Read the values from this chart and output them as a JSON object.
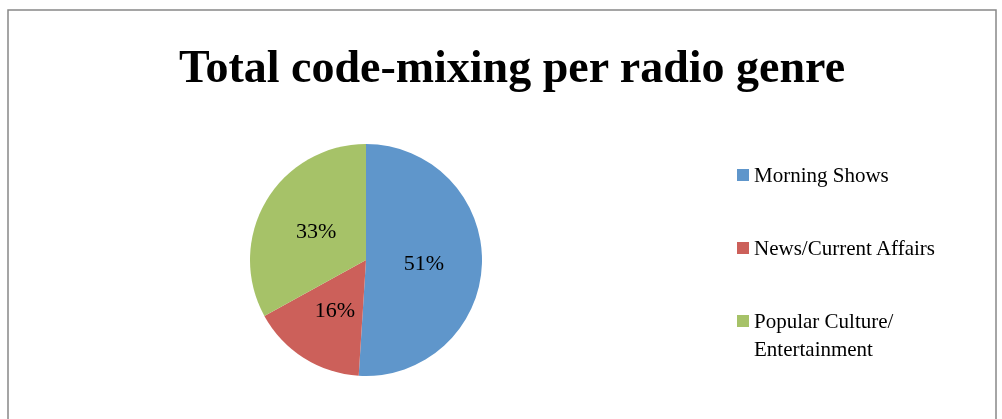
{
  "chart_data": {
    "type": "pie",
    "title": "Total code-mixing per radio genre",
    "categories": [
      "Morning Shows",
      "News/Current Affairs",
      "Popular Culture/Entertainment"
    ],
    "values": [
      51,
      16,
      33
    ],
    "value_labels": [
      "51%",
      "16%",
      "33%"
    ],
    "colors": [
      "#5f96cb",
      "#cc605a",
      "#a6c268"
    ],
    "legend": "right"
  }
}
